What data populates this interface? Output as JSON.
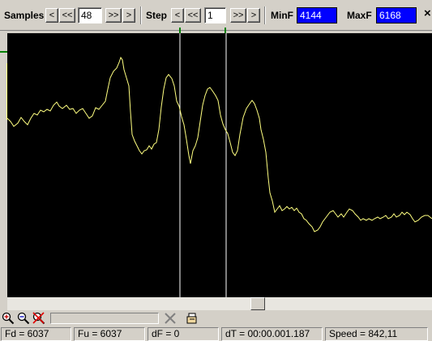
{
  "toolbar": {
    "samples_label": "Samples",
    "samples_value": "48",
    "step_label": "Step",
    "step_value": "1",
    "minf_label": "MinF",
    "minf_value": "4144",
    "maxf_label": "MaxF",
    "maxf_value": "6168",
    "btn_prev": "<",
    "btn_first": "<<",
    "btn_last": ">>",
    "btn_next": ">",
    "close_glyph": "×"
  },
  "plot": {
    "background": "#000000",
    "trace_color": "#ffff80",
    "cursor_color": "#ffffff",
    "marker_color": "#008000"
  },
  "status": {
    "fd": "Fd = 6037",
    "fu": "Fu = 6037",
    "df": "dF = 0",
    "dt": "dT = 00:00.001.187",
    "speed": "Speed = 842,11"
  },
  "icons": {
    "zoom_in": "zoom-in-icon",
    "zoom_out": "zoom-out-icon",
    "zoom_reset": "zoom-reset-icon",
    "clear": "clear-x-icon",
    "hand": "hand-pointer-icon"
  }
}
